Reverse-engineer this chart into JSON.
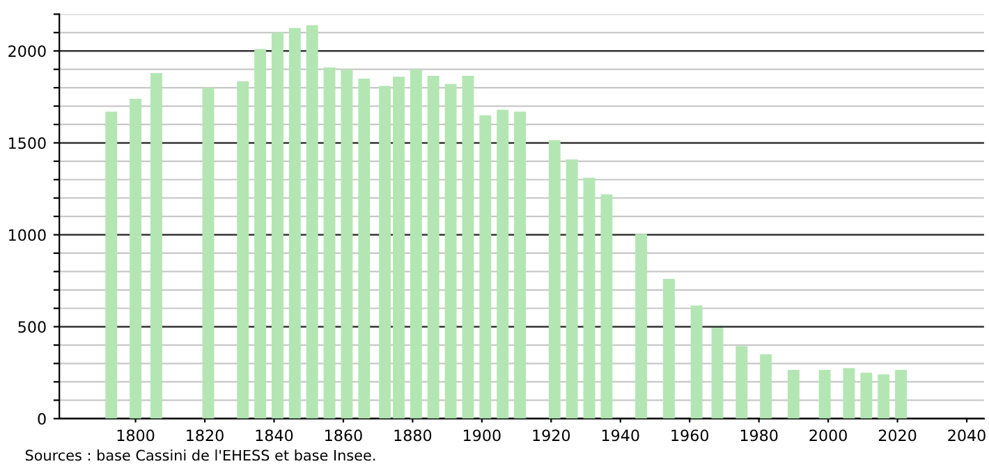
{
  "chart_data": {
    "type": "bar",
    "x": [
      1793,
      1800,
      1806,
      1821,
      1831,
      1836,
      1841,
      1846,
      1851,
      1856,
      1861,
      1866,
      1872,
      1876,
      1881,
      1886,
      1891,
      1896,
      1901,
      1906,
      1911,
      1921,
      1926,
      1931,
      1936,
      1946,
      1954,
      1962,
      1968,
      1975,
      1982,
      1990,
      1999,
      2006,
      2011,
      2016,
      2021
    ],
    "values": [
      1670,
      1740,
      1880,
      1800,
      1835,
      2010,
      2100,
      2125,
      2140,
      1910,
      1900,
      1850,
      1810,
      1860,
      1900,
      1865,
      1820,
      1865,
      1650,
      1680,
      1670,
      1515,
      1410,
      1310,
      1220,
      1005,
      760,
      615,
      495,
      395,
      350,
      265,
      265,
      275,
      250,
      240,
      265
    ],
    "color": "#b3e6b3",
    "xlim": [
      1778,
      2045
    ],
    "xticks": [
      1800,
      1820,
      1840,
      1860,
      1880,
      1900,
      1920,
      1940,
      1960,
      1980,
      2000,
      2020,
      2040
    ],
    "ylim": [
      0,
      2200
    ],
    "yticks": [
      0,
      {
        "value": 100,
        "label": null
      },
      {
        "value": 200,
        "label": null
      },
      {
        "value": 300,
        "label": null
      },
      {
        "value": 400,
        "label": null
      },
      500,
      {
        "value": 600,
        "label": null
      },
      {
        "value": 700,
        "label": null
      },
      {
        "value": 800,
        "label": null
      },
      {
        "value": 900,
        "label": null
      },
      1000,
      {
        "value": 1100,
        "label": null
      },
      {
        "value": 1200,
        "label": null
      },
      {
        "value": 1300,
        "label": null
      },
      {
        "value": 1400,
        "label": null
      },
      1500,
      {
        "value": 1600,
        "label": null
      },
      {
        "value": 1700,
        "label": null
      },
      {
        "value": 1800,
        "label": null
      },
      {
        "value": 1900,
        "label": null
      },
      2000,
      {
        "value": 2100,
        "label": null
      },
      {
        "value": 2200,
        "label": null
      }
    ],
    "grid": "y",
    "annotations": [
      "Sources : base Cassini de l'EHESS et base Insee."
    ]
  }
}
